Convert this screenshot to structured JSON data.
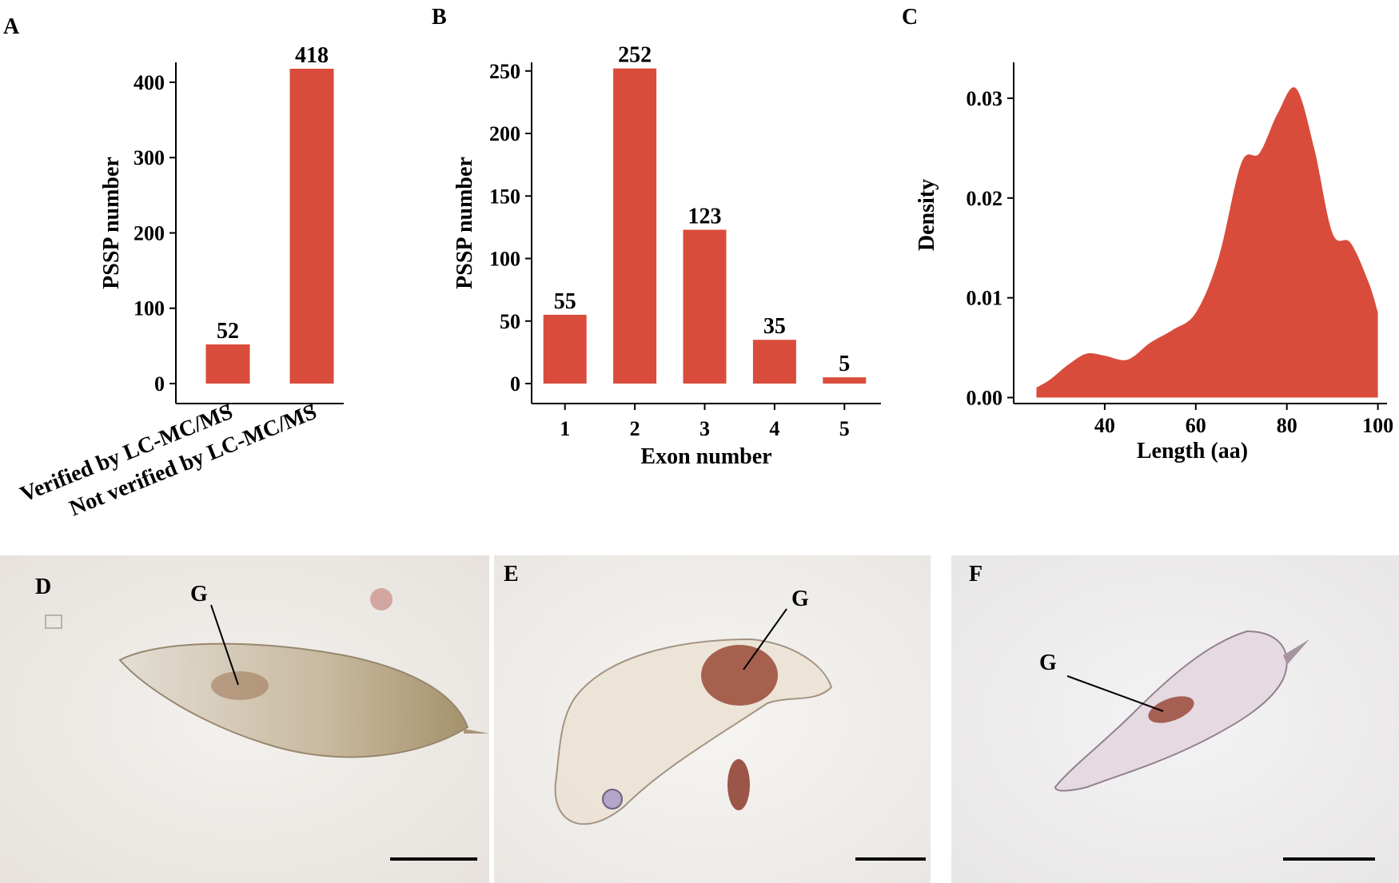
{
  "colors": {
    "bar": "#d94c3b",
    "axis": "#000000"
  },
  "panels": {
    "A": {
      "label": "A"
    },
    "B": {
      "label": "B"
    },
    "C": {
      "label": "C"
    },
    "D": {
      "label": "D",
      "marker": "G"
    },
    "E": {
      "label": "E",
      "marker": "G"
    },
    "F": {
      "label": "F",
      "marker": "G"
    }
  },
  "chart_data": [
    {
      "id": "A",
      "type": "bar",
      "categories": [
        "Verified by LC-MC/MS",
        "Not verified by LC-MC/MS"
      ],
      "values": [
        52,
        418
      ],
      "data_labels": [
        "52",
        "418"
      ],
      "xlabel": "",
      "ylabel": "PSSP number",
      "ylim": [
        0,
        418
      ],
      "yticks": [
        0,
        100,
        200,
        300,
        400
      ]
    },
    {
      "id": "B",
      "type": "bar",
      "categories": [
        "1",
        "2",
        "3",
        "4",
        "5"
      ],
      "values": [
        55,
        252,
        123,
        35,
        5
      ],
      "data_labels": [
        "55",
        "252",
        "123",
        "35",
        "5"
      ],
      "xlabel": "Exon number",
      "ylabel": "PSSP number",
      "ylim": [
        0,
        262
      ],
      "yticks": [
        0,
        50,
        100,
        150,
        200,
        250
      ]
    },
    {
      "id": "C",
      "type": "area",
      "x": [
        25,
        28,
        32,
        36,
        40,
        45,
        50,
        55,
        60,
        65,
        70,
        74,
        78,
        82,
        86,
        90,
        94,
        98,
        100
      ],
      "y": [
        0.001,
        0.0018,
        0.0033,
        0.0044,
        0.0042,
        0.0038,
        0.0055,
        0.0068,
        0.0085,
        0.014,
        0.0235,
        0.0245,
        0.0285,
        0.031,
        0.025,
        0.0165,
        0.0155,
        0.0115,
        0.0085
      ],
      "xlabel": "Length (aa)",
      "ylabel": "Density",
      "xlim": [
        20,
        102
      ],
      "ylim": [
        -0.0006,
        0.0336
      ],
      "xticks": [
        40,
        60,
        80,
        100
      ],
      "yticks": [
        0.0,
        0.01,
        0.02,
        0.03
      ],
      "ytick_labels": [
        "0.00",
        "0.01",
        "0.02",
        "0.03"
      ]
    }
  ]
}
